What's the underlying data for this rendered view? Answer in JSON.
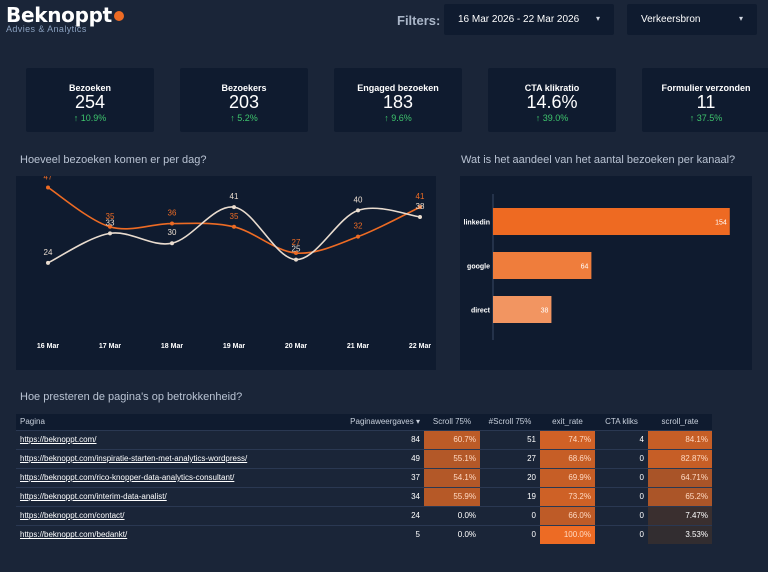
{
  "brand": {
    "name": "Beknoppt",
    "tagline": "Advies & Analytics"
  },
  "filters": {
    "label": "Filters:",
    "date_range": "16 Mar 2026 - 22 Mar 2026",
    "source": "Verkeersbron"
  },
  "kpis": [
    {
      "label": "Bezoeken",
      "value": "254",
      "change": "↑ 10.9%"
    },
    {
      "label": "Bezoekers",
      "value": "203",
      "change": "↑ 5.2%"
    },
    {
      "label": "Engaged bezoeken",
      "value": "183",
      "change": "↑ 9.6%"
    },
    {
      "label": "CTA klikratio",
      "value": "14.6%",
      "change": "↑ 39.0%"
    },
    {
      "label": "Formulier verzonden",
      "value": "11",
      "change": "↑ 37.5%"
    }
  ],
  "colors": {
    "accent": "#ed6b24",
    "line_light": "#e9dccf",
    "positive": "#3ec46d",
    "panel": "#0f1b2f",
    "background": "#1a2538"
  },
  "line_section": {
    "title": "Hoeveel bezoeken komen er per dag?"
  },
  "bar_section": {
    "title": "Wat is  het aandeel van het aantal bezoeken per kanaal?"
  },
  "table_section": {
    "title": "Hoe presteren de pagina's op betrokkenheid?"
  },
  "chart_data": [
    {
      "type": "line",
      "x": [
        "16 Mar",
        "17 Mar",
        "18 Mar",
        "19 Mar",
        "20 Mar",
        "21 Mar",
        "22 Mar"
      ],
      "series": [
        {
          "values": [
            47,
            35,
            36,
            35,
            27,
            32,
            41
          ]
        },
        {
          "values": [
            24,
            33,
            30,
            41,
            25,
            40,
            38
          ]
        }
      ],
      "ylim": [
        20,
        45
      ]
    },
    {
      "type": "bar",
      "orientation": "horizontal",
      "categories": [
        "linkedin",
        "google",
        "direct"
      ],
      "values": [
        154,
        64,
        38
      ],
      "xlim": [
        0,
        160
      ]
    }
  ],
  "table": {
    "headers": [
      "Pagina",
      "Paginaweergaves ▾",
      "Scroll 75%",
      "#Scroll 75%",
      "exit_rate",
      "CTA kliks",
      "scroll_rate"
    ],
    "rows": [
      {
        "page": "https://beknoppt.com/",
        "views": "84",
        "scroll75": "60.7%",
        "n_scroll75": "51",
        "exit_rate": "74.7%",
        "cta": "4",
        "scroll_rate": "84.1%",
        "heat": [
          0.75,
          0.85,
          0.8
        ]
      },
      {
        "page": "https://beknoppt.com/inspiratie-starten-met-analytics-wordpress/",
        "views": "49",
        "scroll75": "55.1%",
        "n_scroll75": "27",
        "exit_rate": "68.6%",
        "cta": "0",
        "scroll_rate": "82.87%",
        "heat": [
          0.7,
          0.8,
          0.8
        ]
      },
      {
        "page": "https://beknoppt.com/rico-knopper-data-analytics-consultant/",
        "views": "37",
        "scroll75": "54.1%",
        "n_scroll75": "20",
        "exit_rate": "69.9%",
        "cta": "0",
        "scroll_rate": "64.71%",
        "heat": [
          0.7,
          0.8,
          0.65
        ]
      },
      {
        "page": "https://beknoppt.com/interim-data-analist/",
        "views": "34",
        "scroll75": "55.9%",
        "n_scroll75": "19",
        "exit_rate": "73.2%",
        "cta": "0",
        "scroll_rate": "65.2%",
        "heat": [
          0.72,
          0.84,
          0.66
        ]
      },
      {
        "page": "https://beknoppt.com/contact/",
        "views": "24",
        "scroll75": "0.0%",
        "n_scroll75": "0",
        "exit_rate": "66.0%",
        "cta": "0",
        "scroll_rate": "7.47%",
        "heat": [
          0,
          0.76,
          0.08
        ]
      },
      {
        "page": "https://beknoppt.com/bedankt/",
        "views": "5",
        "scroll75": "0.0%",
        "n_scroll75": "0",
        "exit_rate": "100.0%",
        "cta": "0",
        "scroll_rate": "3.53%",
        "heat": [
          0,
          1,
          0.04
        ]
      }
    ]
  }
}
